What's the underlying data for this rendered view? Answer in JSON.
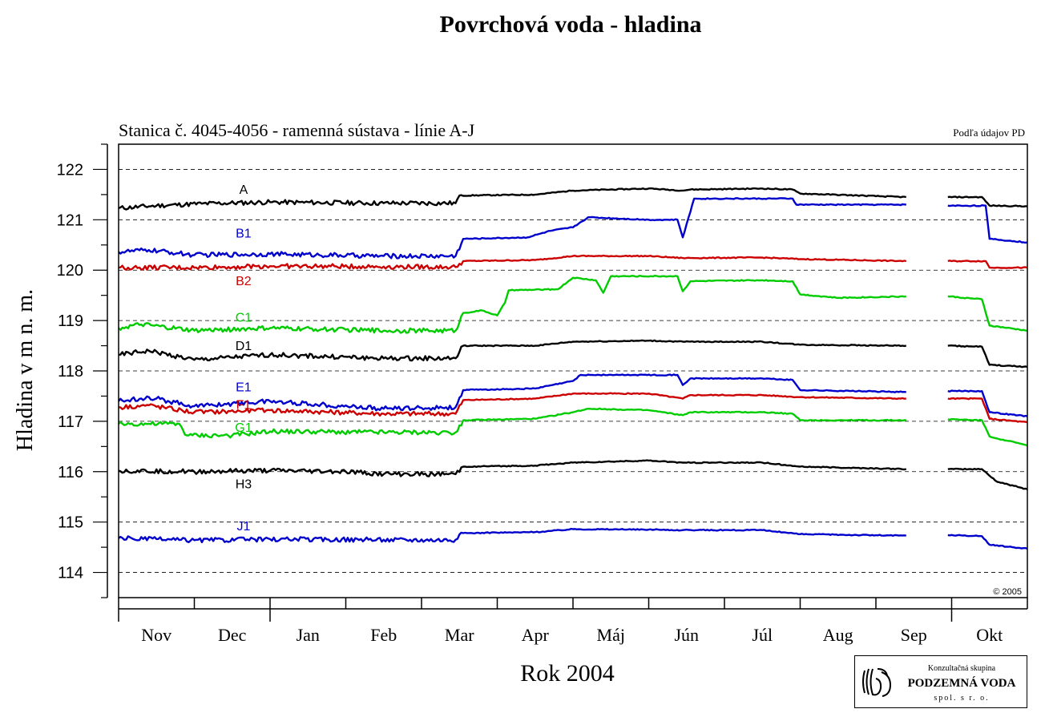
{
  "title": "Povrchová voda - hladina",
  "chart_data": {
    "type": "line",
    "subtitle": "Stanica č. 4045-4056 - ramenná sústava - línie A-J",
    "source_note": "Podľa údajov PD",
    "copyright": "© 2005",
    "xlabel": "Rok 2004",
    "ylabel": "Hladina v m n. m.",
    "ylim": [
      113.5,
      122.5
    ],
    "yticks": [
      114,
      115,
      116,
      117,
      118,
      119,
      120,
      121,
      122
    ],
    "grid": "dashed horizontal at integer values",
    "x_months": [
      "Nov",
      "Dec",
      "Jan",
      "Feb",
      "Mar",
      "Apr",
      "Máj",
      "Jún",
      "Júl",
      "Aug",
      "Sep",
      "Okt"
    ],
    "gap": "no data approx. mid-September to end of September",
    "colors": {
      "black": "#000000",
      "blue": "#0000cc",
      "red": "#cc0000",
      "green": "#00cc00"
    },
    "series": [
      {
        "name": "A",
        "color": "#000000",
        "points": [
          [
            0,
            121.23
          ],
          [
            0.5,
            121.28
          ],
          [
            1.1,
            121.32
          ],
          [
            2,
            121.35
          ],
          [
            3.5,
            121.33
          ],
          [
            4.45,
            121.33
          ],
          [
            4.5,
            121.48
          ],
          [
            5.5,
            121.5
          ],
          [
            6,
            121.58
          ],
          [
            7,
            121.62
          ],
          [
            7.45,
            121.58
          ],
          [
            7.55,
            121.6
          ],
          [
            8.5,
            121.62
          ],
          [
            8.9,
            121.6
          ],
          [
            9,
            121.52
          ],
          [
            10.4,
            121.45
          ],
          [
            10.7,
            null
          ],
          [
            10.95,
            121.45
          ],
          [
            11.4,
            121.45
          ],
          [
            11.5,
            121.28
          ],
          [
            12,
            121.27
          ]
        ]
      },
      {
        "name": "B1",
        "color": "#0000cc",
        "points": [
          [
            0,
            120.36
          ],
          [
            0.4,
            120.4
          ],
          [
            1,
            120.3
          ],
          [
            2,
            120.32
          ],
          [
            3.5,
            120.28
          ],
          [
            4.45,
            120.28
          ],
          [
            4.55,
            120.62
          ],
          [
            5.4,
            120.65
          ],
          [
            5.7,
            120.78
          ],
          [
            6,
            120.85
          ],
          [
            6.2,
            121.05
          ],
          [
            7.0,
            121.0
          ],
          [
            7.38,
            121.0
          ],
          [
            7.45,
            120.65
          ],
          [
            7.6,
            121.42
          ],
          [
            8.7,
            121.42
          ],
          [
            8.9,
            121.42
          ],
          [
            8.95,
            121.3
          ],
          [
            10.4,
            121.3
          ],
          [
            10.7,
            null
          ],
          [
            10.95,
            121.28
          ],
          [
            11.45,
            121.28
          ],
          [
            11.5,
            120.62
          ],
          [
            12,
            120.55
          ]
        ]
      },
      {
        "name": "B2",
        "color": "#cc0000",
        "points": [
          [
            0,
            120.05
          ],
          [
            1,
            120.05
          ],
          [
            2,
            120.08
          ],
          [
            3.5,
            120.07
          ],
          [
            4.45,
            120.06
          ],
          [
            4.55,
            120.18
          ],
          [
            5.5,
            120.2
          ],
          [
            6,
            120.28
          ],
          [
            7,
            120.28
          ],
          [
            7.45,
            120.24
          ],
          [
            8.5,
            120.25
          ],
          [
            9,
            120.22
          ],
          [
            10.4,
            120.18
          ],
          [
            10.7,
            null
          ],
          [
            10.95,
            120.18
          ],
          [
            11.45,
            120.18
          ],
          [
            11.5,
            120.05
          ],
          [
            12,
            120.05
          ]
        ]
      },
      {
        "name": "C1",
        "color": "#00cc00",
        "points": [
          [
            0,
            118.85
          ],
          [
            0.3,
            118.92
          ],
          [
            1,
            118.8
          ],
          [
            2,
            118.85
          ],
          [
            3.5,
            118.8
          ],
          [
            4.45,
            118.8
          ],
          [
            4.55,
            119.15
          ],
          [
            4.8,
            119.2
          ],
          [
            5.0,
            119.1
          ],
          [
            5.1,
            119.35
          ],
          [
            5.15,
            119.6
          ],
          [
            5.8,
            119.62
          ],
          [
            6.0,
            119.85
          ],
          [
            6.3,
            119.8
          ],
          [
            6.4,
            119.55
          ],
          [
            6.5,
            119.88
          ],
          [
            7.38,
            119.88
          ],
          [
            7.45,
            119.58
          ],
          [
            7.55,
            119.78
          ],
          [
            8.5,
            119.8
          ],
          [
            8.9,
            119.78
          ],
          [
            9.0,
            119.52
          ],
          [
            9.5,
            119.45
          ],
          [
            10.4,
            119.48
          ],
          [
            10.7,
            null
          ],
          [
            10.95,
            119.48
          ],
          [
            11.4,
            119.42
          ],
          [
            11.5,
            118.9
          ],
          [
            12,
            118.8
          ]
        ]
      },
      {
        "name": "D1",
        "color": "#000000",
        "points": [
          [
            0,
            118.32
          ],
          [
            0.4,
            118.4
          ],
          [
            1,
            118.22
          ],
          [
            2,
            118.32
          ],
          [
            3.5,
            118.25
          ],
          [
            4.45,
            118.25
          ],
          [
            4.55,
            118.5
          ],
          [
            5.5,
            118.5
          ],
          [
            6,
            118.58
          ],
          [
            7,
            118.6
          ],
          [
            7.45,
            118.58
          ],
          [
            8.5,
            118.58
          ],
          [
            9,
            118.52
          ],
          [
            10.4,
            118.5
          ],
          [
            10.7,
            null
          ],
          [
            10.95,
            118.5
          ],
          [
            11.4,
            118.48
          ],
          [
            11.5,
            118.12
          ],
          [
            12,
            118.08
          ]
        ]
      },
      {
        "name": "E1",
        "color": "#0000cc",
        "points": [
          [
            0,
            117.4
          ],
          [
            0.4,
            117.48
          ],
          [
            1,
            117.3
          ],
          [
            2,
            117.4
          ],
          [
            3.5,
            117.25
          ],
          [
            4.45,
            117.28
          ],
          [
            4.55,
            117.62
          ],
          [
            5.5,
            117.65
          ],
          [
            6,
            117.8
          ],
          [
            6.1,
            117.92
          ],
          [
            7.38,
            117.92
          ],
          [
            7.45,
            117.72
          ],
          [
            7.55,
            117.85
          ],
          [
            8.5,
            117.85
          ],
          [
            8.9,
            117.82
          ],
          [
            9.0,
            117.62
          ],
          [
            10.4,
            117.58
          ],
          [
            10.7,
            null
          ],
          [
            10.95,
            117.6
          ],
          [
            11.4,
            117.6
          ],
          [
            11.5,
            117.18
          ],
          [
            12,
            117.1
          ]
        ]
      },
      {
        "name": "F1",
        "color": "#cc0000",
        "points": [
          [
            0,
            117.28
          ],
          [
            0.4,
            117.32
          ],
          [
            1,
            117.18
          ],
          [
            2,
            117.22
          ],
          [
            3.5,
            117.15
          ],
          [
            4.45,
            117.15
          ],
          [
            4.55,
            117.42
          ],
          [
            5.5,
            117.45
          ],
          [
            6,
            117.55
          ],
          [
            7,
            117.55
          ],
          [
            7.45,
            117.45
          ],
          [
            7.55,
            117.52
          ],
          [
            8.5,
            117.52
          ],
          [
            9,
            117.48
          ],
          [
            10.4,
            117.45
          ],
          [
            10.7,
            null
          ],
          [
            10.95,
            117.45
          ],
          [
            11.4,
            117.45
          ],
          [
            11.5,
            117.05
          ],
          [
            12,
            116.98
          ]
        ]
      },
      {
        "name": "G1",
        "color": "#00cc00",
        "points": [
          [
            0,
            116.95
          ],
          [
            0.8,
            116.95
          ],
          [
            0.9,
            116.72
          ],
          [
            1.5,
            116.72
          ],
          [
            2,
            116.8
          ],
          [
            3.5,
            116.78
          ],
          [
            4.45,
            116.78
          ],
          [
            4.55,
            117.02
          ],
          [
            5.5,
            117.05
          ],
          [
            6,
            117.18
          ],
          [
            6.2,
            117.25
          ],
          [
            7,
            117.22
          ],
          [
            7.45,
            117.12
          ],
          [
            7.55,
            117.18
          ],
          [
            8.5,
            117.18
          ],
          [
            8.9,
            117.15
          ],
          [
            9.0,
            117.02
          ],
          [
            10.4,
            117.02
          ],
          [
            10.7,
            null
          ],
          [
            10.95,
            117.04
          ],
          [
            11.4,
            117.02
          ],
          [
            11.5,
            116.7
          ],
          [
            12,
            116.52
          ]
        ]
      },
      {
        "name": "H3",
        "color": "#000000",
        "points": [
          [
            0,
            116.02
          ],
          [
            1,
            116.0
          ],
          [
            2,
            116.02
          ],
          [
            3,
            116.0
          ],
          [
            3.5,
            115.95
          ],
          [
            4.45,
            115.95
          ],
          [
            4.55,
            116.1
          ],
          [
            5.5,
            116.12
          ],
          [
            6,
            116.18
          ],
          [
            7,
            116.22
          ],
          [
            7.45,
            116.18
          ],
          [
            8.5,
            116.18
          ],
          [
            9,
            116.1
          ],
          [
            10.4,
            116.05
          ],
          [
            10.7,
            null
          ],
          [
            10.95,
            116.05
          ],
          [
            11.4,
            116.05
          ],
          [
            11.6,
            115.8
          ],
          [
            12,
            115.65
          ]
        ]
      },
      {
        "name": "J1",
        "color": "#0000cc",
        "points": [
          [
            0,
            114.68
          ],
          [
            1,
            114.64
          ],
          [
            2,
            114.66
          ],
          [
            3.5,
            114.65
          ],
          [
            4.45,
            114.65
          ],
          [
            4.55,
            114.78
          ],
          [
            5.5,
            114.8
          ],
          [
            6,
            114.86
          ],
          [
            7,
            114.85
          ],
          [
            7.45,
            114.84
          ],
          [
            8.5,
            114.84
          ],
          [
            9,
            114.76
          ],
          [
            10.4,
            114.73
          ],
          [
            10.7,
            null
          ],
          [
            10.95,
            114.74
          ],
          [
            11.4,
            114.72
          ],
          [
            11.5,
            114.55
          ],
          [
            12,
            114.47
          ]
        ]
      }
    ]
  },
  "logo": {
    "line1": "Konzultačná skupina",
    "line2": "PODZEMNÁ VODA",
    "line3": "spol. s r. o."
  }
}
